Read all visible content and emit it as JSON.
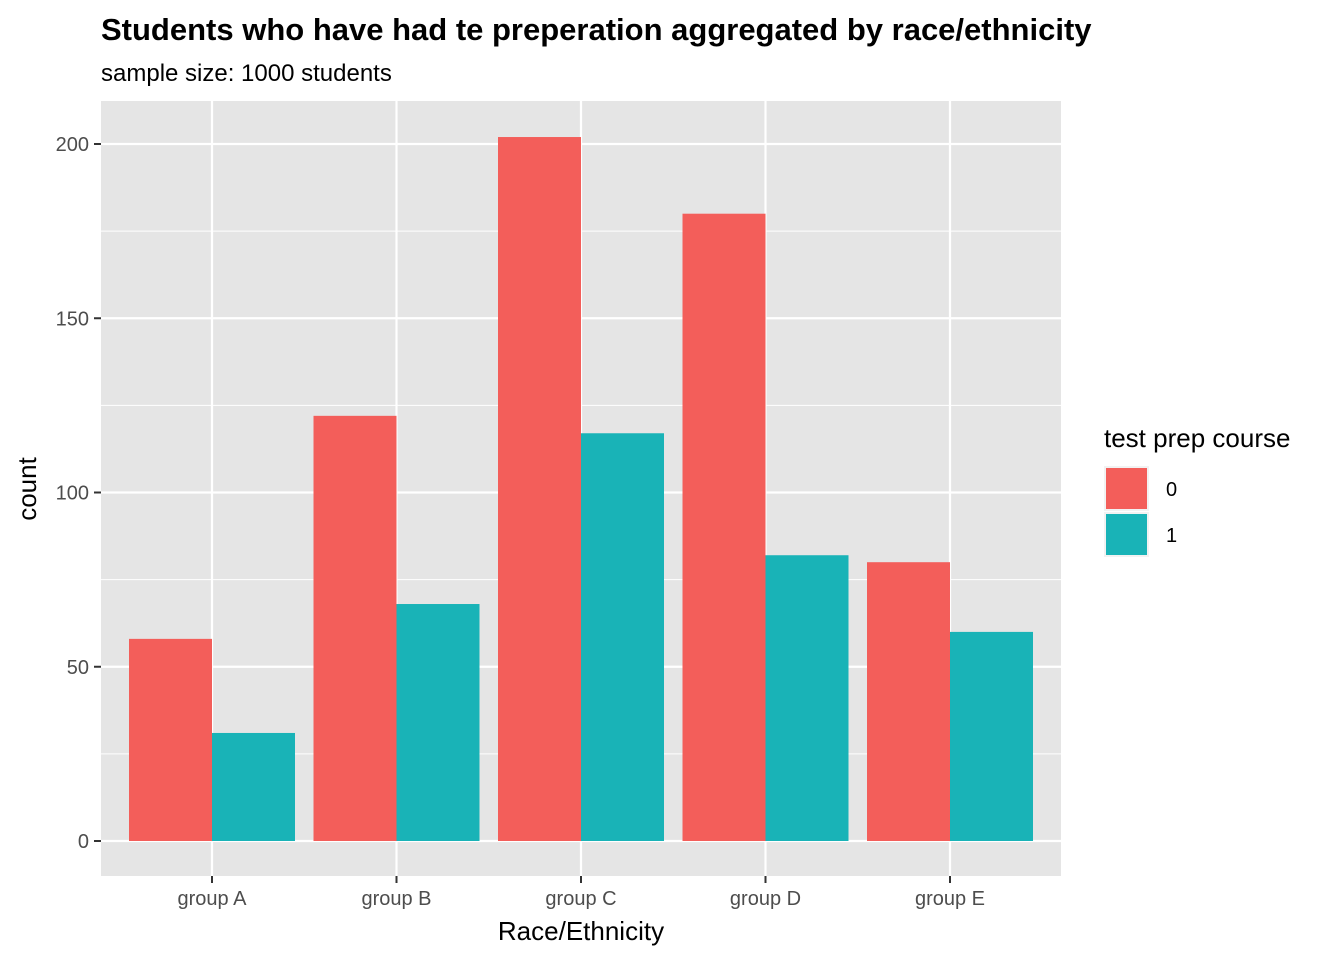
{
  "chart_data": {
    "type": "bar",
    "title": "Students who have had te preperation aggregated by race/ethnicity",
    "subtitle": "sample size: 1000 students",
    "xlabel": "Race/Ethnicity",
    "ylabel": "count",
    "categories": [
      "group A",
      "group B",
      "group C",
      "group D",
      "group E"
    ],
    "series": [
      {
        "name": "0",
        "values": [
          58,
          122,
          202,
          180,
          80
        ],
        "color": "#F35E5A"
      },
      {
        "name": "1",
        "values": [
          31,
          68,
          117,
          82,
          60
        ],
        "color": "#19B3B7"
      }
    ],
    "ylim": [
      0,
      210
    ],
    "yticks": [
      0,
      50,
      100,
      150,
      200
    ],
    "yticks_labels": [
      "0",
      "50",
      "100",
      "150",
      "200"
    ],
    "grid": true,
    "legend": {
      "title": "test prep course",
      "placement": "right"
    },
    "panel_background": "#E5E5E5",
    "grid_color": "#FFFFFF"
  }
}
